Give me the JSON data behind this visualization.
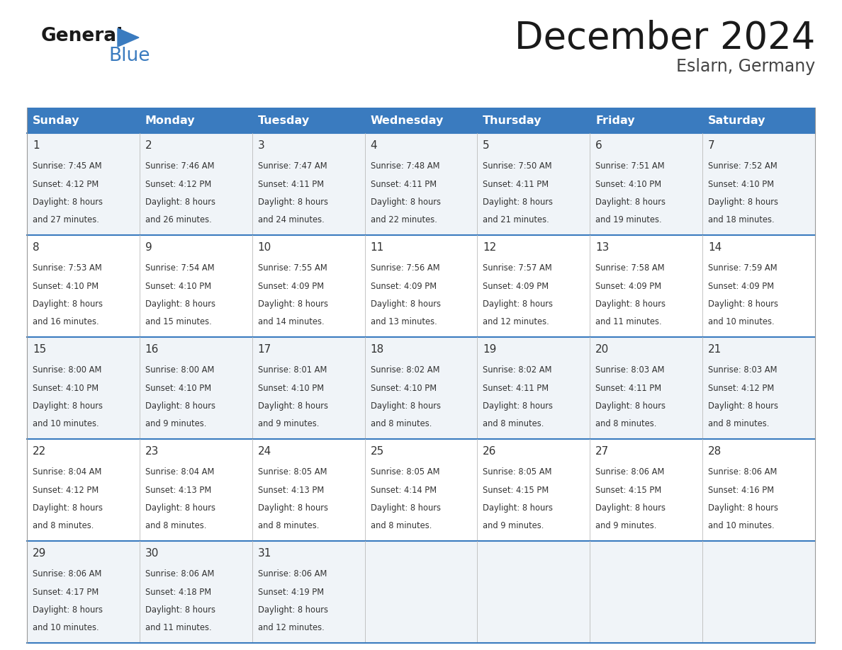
{
  "title": "December 2024",
  "subtitle": "Eslarn, Germany",
  "days_of_week": [
    "Sunday",
    "Monday",
    "Tuesday",
    "Wednesday",
    "Thursday",
    "Friday",
    "Saturday"
  ],
  "header_bg": "#3a7bbf",
  "header_text": "#ffffff",
  "row_bg_odd": "#f0f4f8",
  "row_bg_even": "#ffffff",
  "separator_color": "#3a7bbf",
  "day_number_color": "#333333",
  "info_text_color": "#333333",
  "calendar_data": [
    {
      "day": 1,
      "col": 0,
      "row": 0,
      "sunrise": "7:45 AM",
      "sunset": "4:12 PM",
      "daylight": "8 hours and 27 minutes."
    },
    {
      "day": 2,
      "col": 1,
      "row": 0,
      "sunrise": "7:46 AM",
      "sunset": "4:12 PM",
      "daylight": "8 hours and 26 minutes."
    },
    {
      "day": 3,
      "col": 2,
      "row": 0,
      "sunrise": "7:47 AM",
      "sunset": "4:11 PM",
      "daylight": "8 hours and 24 minutes."
    },
    {
      "day": 4,
      "col": 3,
      "row": 0,
      "sunrise": "7:48 AM",
      "sunset": "4:11 PM",
      "daylight": "8 hours and 22 minutes."
    },
    {
      "day": 5,
      "col": 4,
      "row": 0,
      "sunrise": "7:50 AM",
      "sunset": "4:11 PM",
      "daylight": "8 hours and 21 minutes."
    },
    {
      "day": 6,
      "col": 5,
      "row": 0,
      "sunrise": "7:51 AM",
      "sunset": "4:10 PM",
      "daylight": "8 hours and 19 minutes."
    },
    {
      "day": 7,
      "col": 6,
      "row": 0,
      "sunrise": "7:52 AM",
      "sunset": "4:10 PM",
      "daylight": "8 hours and 18 minutes."
    },
    {
      "day": 8,
      "col": 0,
      "row": 1,
      "sunrise": "7:53 AM",
      "sunset": "4:10 PM",
      "daylight": "8 hours and 16 minutes."
    },
    {
      "day": 9,
      "col": 1,
      "row": 1,
      "sunrise": "7:54 AM",
      "sunset": "4:10 PM",
      "daylight": "8 hours and 15 minutes."
    },
    {
      "day": 10,
      "col": 2,
      "row": 1,
      "sunrise": "7:55 AM",
      "sunset": "4:09 PM",
      "daylight": "8 hours and 14 minutes."
    },
    {
      "day": 11,
      "col": 3,
      "row": 1,
      "sunrise": "7:56 AM",
      "sunset": "4:09 PM",
      "daylight": "8 hours and 13 minutes."
    },
    {
      "day": 12,
      "col": 4,
      "row": 1,
      "sunrise": "7:57 AM",
      "sunset": "4:09 PM",
      "daylight": "8 hours and 12 minutes."
    },
    {
      "day": 13,
      "col": 5,
      "row": 1,
      "sunrise": "7:58 AM",
      "sunset": "4:09 PM",
      "daylight": "8 hours and 11 minutes."
    },
    {
      "day": 14,
      "col": 6,
      "row": 1,
      "sunrise": "7:59 AM",
      "sunset": "4:09 PM",
      "daylight": "8 hours and 10 minutes."
    },
    {
      "day": 15,
      "col": 0,
      "row": 2,
      "sunrise": "8:00 AM",
      "sunset": "4:10 PM",
      "daylight": "8 hours and 10 minutes."
    },
    {
      "day": 16,
      "col": 1,
      "row": 2,
      "sunrise": "8:00 AM",
      "sunset": "4:10 PM",
      "daylight": "8 hours and 9 minutes."
    },
    {
      "day": 17,
      "col": 2,
      "row": 2,
      "sunrise": "8:01 AM",
      "sunset": "4:10 PM",
      "daylight": "8 hours and 9 minutes."
    },
    {
      "day": 18,
      "col": 3,
      "row": 2,
      "sunrise": "8:02 AM",
      "sunset": "4:10 PM",
      "daylight": "8 hours and 8 minutes."
    },
    {
      "day": 19,
      "col": 4,
      "row": 2,
      "sunrise": "8:02 AM",
      "sunset": "4:11 PM",
      "daylight": "8 hours and 8 minutes."
    },
    {
      "day": 20,
      "col": 5,
      "row": 2,
      "sunrise": "8:03 AM",
      "sunset": "4:11 PM",
      "daylight": "8 hours and 8 minutes."
    },
    {
      "day": 21,
      "col": 6,
      "row": 2,
      "sunrise": "8:03 AM",
      "sunset": "4:12 PM",
      "daylight": "8 hours and 8 minutes."
    },
    {
      "day": 22,
      "col": 0,
      "row": 3,
      "sunrise": "8:04 AM",
      "sunset": "4:12 PM",
      "daylight": "8 hours and 8 minutes."
    },
    {
      "day": 23,
      "col": 1,
      "row": 3,
      "sunrise": "8:04 AM",
      "sunset": "4:13 PM",
      "daylight": "8 hours and 8 minutes."
    },
    {
      "day": 24,
      "col": 2,
      "row": 3,
      "sunrise": "8:05 AM",
      "sunset": "4:13 PM",
      "daylight": "8 hours and 8 minutes."
    },
    {
      "day": 25,
      "col": 3,
      "row": 3,
      "sunrise": "8:05 AM",
      "sunset": "4:14 PM",
      "daylight": "8 hours and 8 minutes."
    },
    {
      "day": 26,
      "col": 4,
      "row": 3,
      "sunrise": "8:05 AM",
      "sunset": "4:15 PM",
      "daylight": "8 hours and 9 minutes."
    },
    {
      "day": 27,
      "col": 5,
      "row": 3,
      "sunrise": "8:06 AM",
      "sunset": "4:15 PM",
      "daylight": "8 hours and 9 minutes."
    },
    {
      "day": 28,
      "col": 6,
      "row": 3,
      "sunrise": "8:06 AM",
      "sunset": "4:16 PM",
      "daylight": "8 hours and 10 minutes."
    },
    {
      "day": 29,
      "col": 0,
      "row": 4,
      "sunrise": "8:06 AM",
      "sunset": "4:17 PM",
      "daylight": "8 hours and 10 minutes."
    },
    {
      "day": 30,
      "col": 1,
      "row": 4,
      "sunrise": "8:06 AM",
      "sunset": "4:18 PM",
      "daylight": "8 hours and 11 minutes."
    },
    {
      "day": 31,
      "col": 2,
      "row": 4,
      "sunrise": "8:06 AM",
      "sunset": "4:19 PM",
      "daylight": "8 hours and 12 minutes."
    }
  ],
  "logo_general_color": "#1a1a1a",
  "logo_blue_color": "#3a7bbf",
  "logo_triangle_color": "#3a7bbf",
  "fig_width": 11.88,
  "fig_height": 9.18,
  "dpi": 100
}
